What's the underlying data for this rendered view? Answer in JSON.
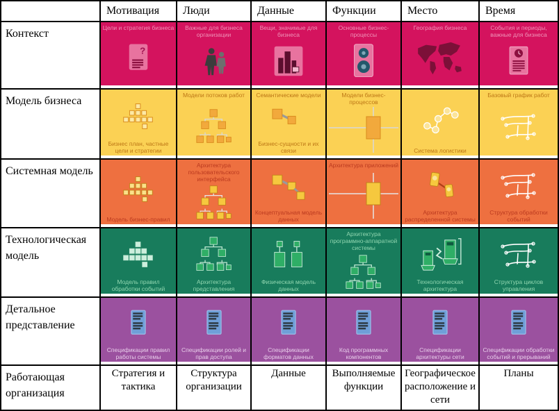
{
  "columns": [
    "Мотивация",
    "Люди",
    "Данные",
    "Функции",
    "Место",
    "Время"
  ],
  "colors": {
    "border": "#000000",
    "row_context": "#d4135e",
    "row_business": "#fbd154",
    "row_system": "#ee7040",
    "row_technology": "#187c5c",
    "row_detail": "#9b519f"
  },
  "rows": [
    {
      "label": "Контекст",
      "bg": "#d4135e",
      "label_color": "#ef93b8",
      "cells": [
        {
          "top": "Цели и стратегия бизнеса",
          "icon": "document-question-icon"
        },
        {
          "top": "Важные для бизнеса организации",
          "icon": "people-icon"
        },
        {
          "top": "Вещи, значимые для бизнеса",
          "icon": "buildings-icon"
        },
        {
          "top": "Основные бизнес-процессы",
          "icon": "gears-document-icon"
        },
        {
          "top": "География бизнеса",
          "icon": "world-map-icon"
        },
        {
          "top": "События и периоды, важные для бизнеса",
          "icon": "document-clock-icon"
        }
      ]
    },
    {
      "label": "Модель бизнеса",
      "bg": "#fbd154",
      "label_color": "#bd7716",
      "cells": [
        {
          "bottom": "Бизнес план, частные цели и стратегии",
          "icon": "pyramid-icon"
        },
        {
          "top": "Модели потоков работ",
          "icon": "workflow-tree-icon"
        },
        {
          "top": "Семантические модели",
          "bottom": "Бизнес-сущности и их связи",
          "icon": "entity-link-icon"
        },
        {
          "top": "Модели бизнес-процессов",
          "icon": "process-crosshair-icon"
        },
        {
          "bottom": "Система логистики",
          "icon": "network-nodes-icon"
        },
        {
          "top": "Базовый график работ",
          "icon": "sketch-icon"
        }
      ]
    },
    {
      "label": "Системная модель",
      "bg": "#ee7040",
      "label_color": "#bb3a1f",
      "cells": [
        {
          "bottom": "Модель бизнес-правил",
          "icon": "pyramid-icon"
        },
        {
          "top": "Архитектура пользовательского интерфейса",
          "icon": "workflow-tree-icon"
        },
        {
          "bottom": "Концептуальная модель данных",
          "icon": "entity-link-icon"
        },
        {
          "top": "Архитектура приложений",
          "icon": "process-crosshair-icon"
        },
        {
          "bottom": "Архитектура распределенной системы",
          "icon": "distributed-nodes-icon"
        },
        {
          "bottom": "Структура обработки событий",
          "icon": "sketch-icon"
        }
      ]
    },
    {
      "label": "Технологическая модель",
      "bg": "#187c5c",
      "label_color": "#90d6b0",
      "cells": [
        {
          "bottom": "Модель правил обработки событий",
          "icon": "pyramid-icon"
        },
        {
          "bottom": "Архитектура представления",
          "icon": "workflow-tree-icon"
        },
        {
          "bottom": "Физическая модель данных",
          "icon": "data-tables-icon"
        },
        {
          "top": "Архитектура программно-аппаратной системы",
          "icon": "workflow-tree-icon"
        },
        {
          "bottom": "Технологическая архитектура",
          "icon": "hardware-icon"
        },
        {
          "bottom": "Структура циклов управления",
          "icon": "sketch-icon"
        }
      ]
    },
    {
      "label": "Детальное представление",
      "bg": "#9b519f",
      "label_color": "#e8cdea",
      "cells": [
        {
          "bottom": "Спецификации правил работы системы",
          "icon": "spec-document-icon"
        },
        {
          "bottom": "Спецификации ролей и прав доступа",
          "icon": "spec-document-icon"
        },
        {
          "bottom": "Спецификации форматов данных",
          "icon": "spec-document-icon"
        },
        {
          "bottom": "Код программных компонентов",
          "icon": "spec-document-icon"
        },
        {
          "bottom": "Спецификации архитектуры сети",
          "icon": "spec-document-icon"
        },
        {
          "bottom": "Спецификации обработки событий и прерываний",
          "icon": "spec-document-icon"
        }
      ]
    }
  ],
  "footer": {
    "label": "Работающая организация",
    "cells": [
      "Стратегия и тактика",
      "Структура организации",
      "Данные",
      "Выполняемые функции",
      "Географическое расположение и сети",
      "Планы"
    ]
  }
}
